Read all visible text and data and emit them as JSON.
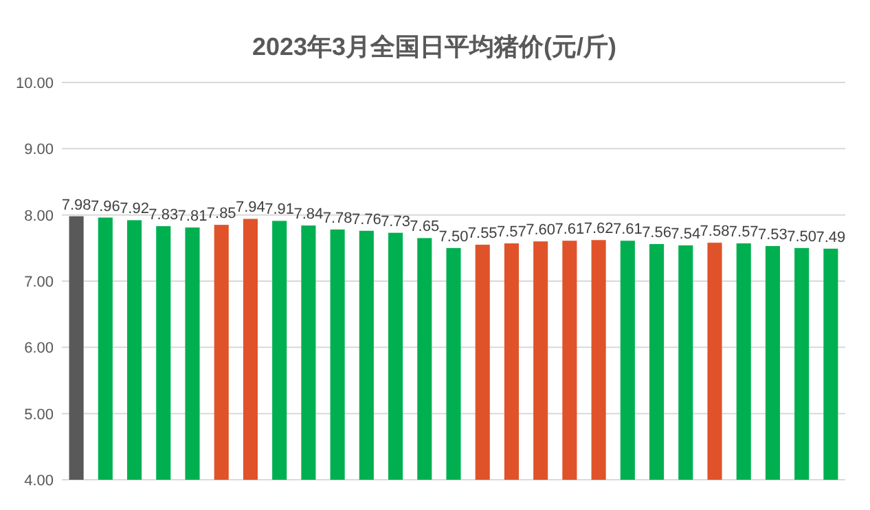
{
  "chart_data": {
    "type": "bar",
    "title": "2023年3月全国日平均猪价(元/斤)",
    "categories": [
      null,
      null,
      null,
      null,
      null,
      null,
      null,
      null,
      null,
      null,
      null,
      null,
      null,
      null,
      null,
      null,
      null,
      null,
      null,
      null,
      null,
      null,
      null,
      null,
      null,
      null,
      null
    ],
    "values": [
      7.98,
      7.96,
      7.92,
      7.83,
      7.81,
      7.85,
      7.94,
      7.91,
      7.84,
      7.78,
      7.76,
      7.73,
      7.65,
      7.5,
      7.55,
      7.57,
      7.6,
      7.61,
      7.62,
      7.61,
      7.56,
      7.54,
      7.58,
      7.57,
      7.53,
      7.5,
      7.49
    ],
    "value_labels": [
      "7.98",
      "7.96",
      "7.92",
      "7.83",
      "7.81",
      "7.85",
      "7.94",
      "7.91",
      "7.84",
      "7.78",
      "7.76",
      "7.73",
      "7.65",
      "7.50",
      "7.55",
      "7.57",
      "7.60",
      "7.61",
      "7.62",
      "7.61",
      "7.56",
      "7.54",
      "7.58",
      "7.57",
      "7.53",
      "7.50",
      "7.49"
    ],
    "colors": [
      "#595959",
      "#00b050",
      "#00b050",
      "#00b050",
      "#00b050",
      "#e0532a",
      "#e0532a",
      "#00b050",
      "#00b050",
      "#00b050",
      "#00b050",
      "#00b050",
      "#00b050",
      "#00b050",
      "#e0532a",
      "#e0532a",
      "#e0532a",
      "#e0532a",
      "#e0532a",
      "#00b050",
      "#00b050",
      "#00b050",
      "#e0532a",
      "#00b050",
      "#00b050",
      "#00b050",
      "#00b050"
    ],
    "ylim": [
      4,
      10
    ],
    "yticks": [
      {
        "value": 4,
        "label": "4.00"
      },
      {
        "value": 5,
        "label": "5.00"
      },
      {
        "value": 6,
        "label": "6.00"
      },
      {
        "value": 7,
        "label": "7.00"
      },
      {
        "value": 8,
        "label": "8.00"
      },
      {
        "value": 9,
        "label": "9.00"
      },
      {
        "value": 10,
        "label": "10.00"
      }
    ],
    "grid": "y"
  }
}
